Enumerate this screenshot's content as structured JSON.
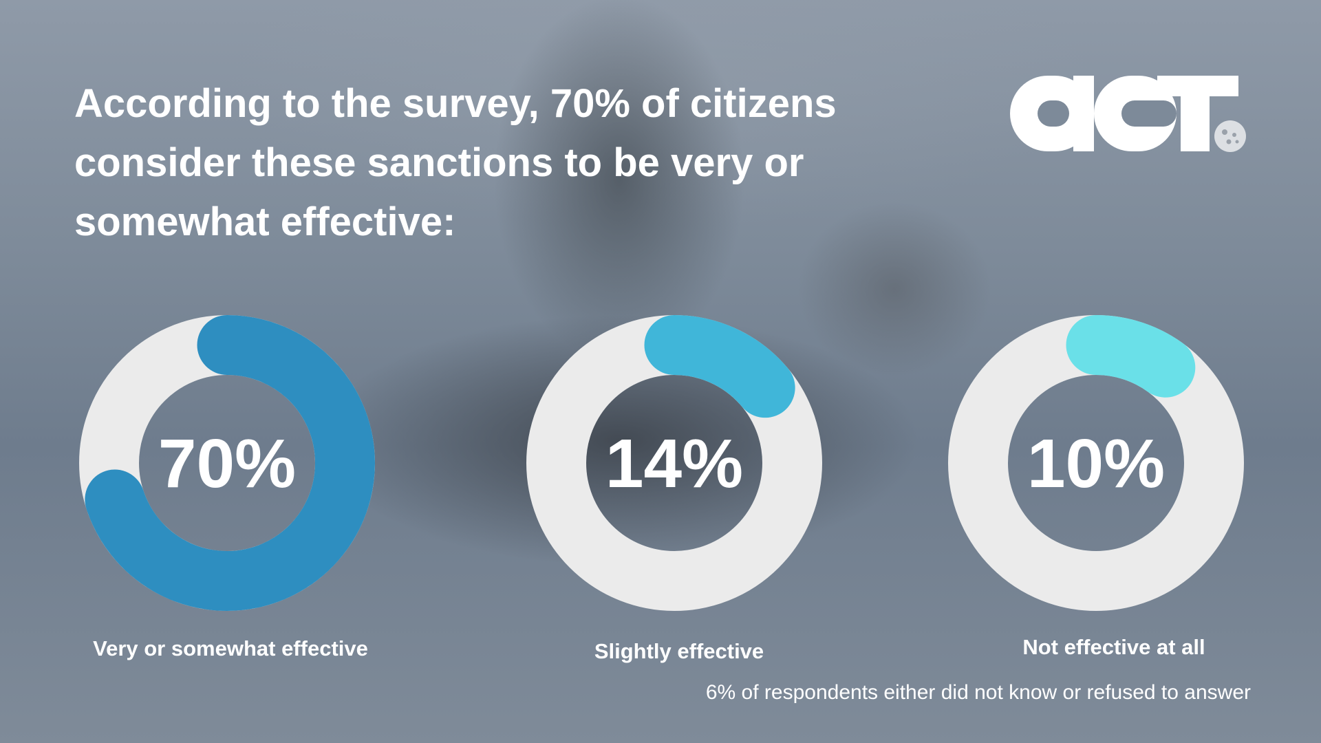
{
  "headline": "According to the survey, 70% of citizens consider these sanctions to be very or somewhat effective:",
  "logo_text": "act",
  "chart_data": {
    "type": "donut",
    "title": "According to the survey, 70% of citizens consider these sanctions to be very or somewhat effective:",
    "categories": [
      "Very or somewhat effective",
      "Slightly effective",
      "Not effective at all"
    ],
    "values": [
      70,
      14,
      10
    ],
    "value_labels": [
      "70%",
      "14%",
      "10%"
    ],
    "unit": "%",
    "colors": [
      "#2e8ec0",
      "#40b6d9",
      "#6ae0e8"
    ],
    "track_color": "#ebebeb",
    "footnote": "6% of respondents either did not know or refused to answer"
  }
}
